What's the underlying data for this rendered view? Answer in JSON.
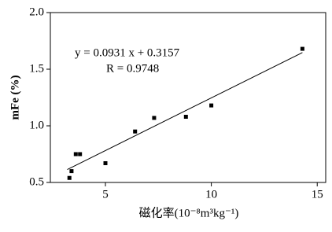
{
  "chart_data": {
    "type": "scatter",
    "x_label": "磁化率(10⁻⁸m³kg⁻¹)",
    "y_label": "mFe (%)",
    "annotations": [
      "y = 0.0931 x + 0.3157",
      "R = 0.9748"
    ],
    "xlim": [
      2.4,
      15.4
    ],
    "ylim": [
      0.5,
      2.0
    ],
    "xticks": [
      5,
      10,
      15
    ],
    "yticks": [
      0.5,
      {
        "value": 1.0,
        "label": "1.0"
      },
      1.5,
      {
        "value": 2.0,
        "label": "2.0"
      }
    ],
    "series": [
      {
        "type": "scatter",
        "color": "#000000",
        "x": [
          3.3,
          3.4,
          3.6,
          3.8,
          5.0,
          6.4,
          7.3,
          8.8,
          10.0,
          14.3
        ],
        "values": [
          0.54,
          0.6,
          0.75,
          0.75,
          0.67,
          0.95,
          1.07,
          1.08,
          1.18,
          1.68
        ]
      },
      {
        "type": "line",
        "color": "#000000",
        "x": [
          3.2,
          14.3
        ],
        "values": [
          0.614,
          1.647
        ]
      }
    ]
  }
}
